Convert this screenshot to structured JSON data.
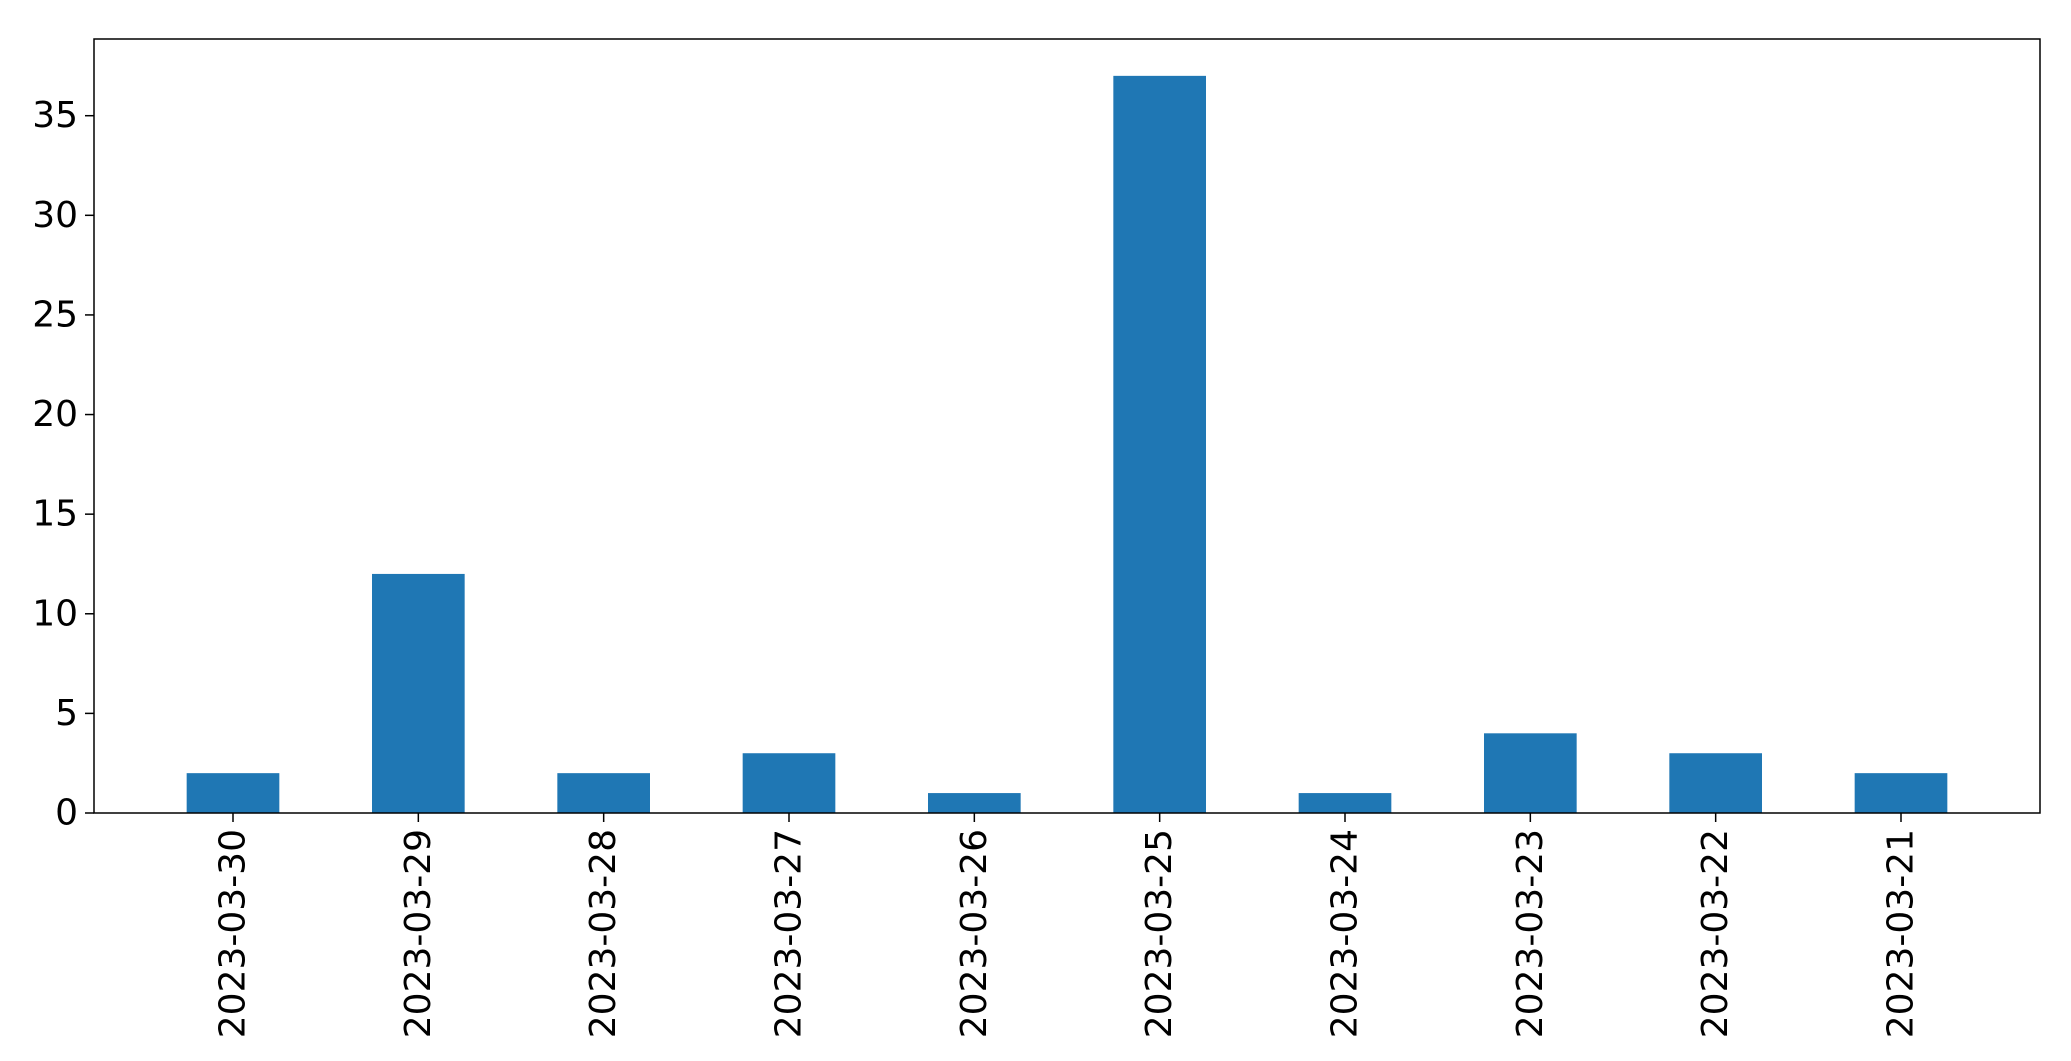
{
  "chart_data": {
    "type": "bar",
    "title": "",
    "xlabel": "",
    "ylabel": "",
    "categories": [
      "2023-03-30",
      "2023-03-29",
      "2023-03-28",
      "2023-03-27",
      "2023-03-26",
      "2023-03-25",
      "2023-03-24",
      "2023-03-23",
      "2023-03-22",
      "2023-03-21"
    ],
    "values": [
      2,
      12,
      2,
      3,
      1,
      37,
      1,
      4,
      3,
      2
    ],
    "ylim": [
      0,
      38.85
    ],
    "yticks": [
      0,
      5,
      10,
      15,
      20,
      25,
      30,
      35
    ],
    "bar_color": "#1f77b4",
    "grid": false,
    "legend": "none"
  }
}
